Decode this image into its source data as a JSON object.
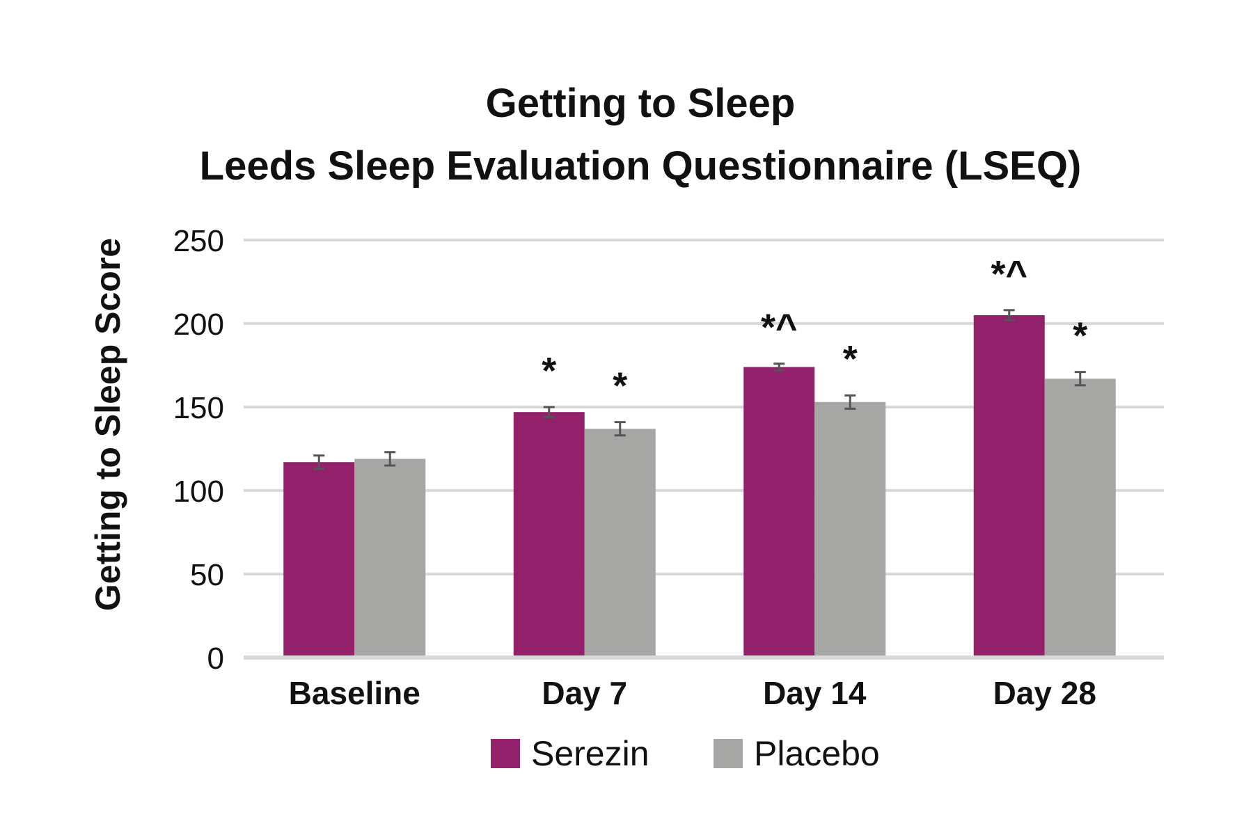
{
  "chart_data": {
    "type": "bar",
    "title": [
      "Getting to Sleep",
      "Leeds Sleep Evaluation Questionnaire (LSEQ)"
    ],
    "xlabel": "",
    "ylabel": "Getting to Sleep Score",
    "ylim": [
      0,
      250
    ],
    "yticks": [
      "0",
      "50",
      "100",
      "150",
      "200",
      "250"
    ],
    "ytick_values": [
      0,
      50,
      100,
      150,
      200,
      250
    ],
    "grid": true,
    "legend_position": "bottom",
    "categories": [
      "Baseline",
      "Day 7",
      "Day 14",
      "Day 28"
    ],
    "series": [
      {
        "name": "Serezin",
        "color": "#93206A",
        "values": [
          117,
          147,
          174,
          205
        ],
        "error": [
          4,
          3,
          2,
          3
        ],
        "annotations": [
          "",
          "*",
          "*^",
          "*^"
        ]
      },
      {
        "name": "Placebo",
        "color": "#A6A6A5",
        "values": [
          119,
          137,
          153,
          167
        ],
        "error": [
          4,
          4,
          4,
          4
        ],
        "annotations": [
          "",
          "*",
          "*",
          "*"
        ]
      }
    ],
    "gridline_color": "#D9D9D9",
    "errorbar_color": "#555555"
  }
}
